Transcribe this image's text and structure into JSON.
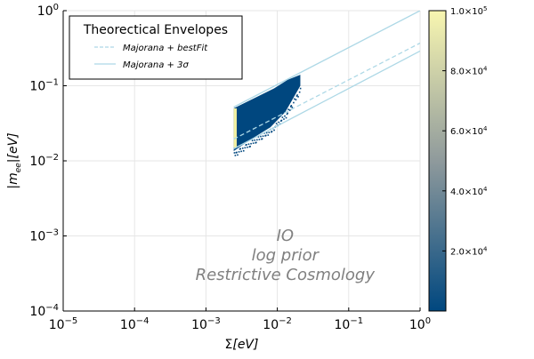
{
  "chart_data": {
    "type": "heatmap",
    "x_scale": "log10",
    "y_scale": "log10",
    "xlim": [
      1e-05,
      1
    ],
    "ylim": [
      0.0001,
      1
    ],
    "x_ticks": [
      {
        "value": 1e-05,
        "base": "10",
        "exp": "−5"
      },
      {
        "value": 0.0001,
        "base": "10",
        "exp": "−4"
      },
      {
        "value": 0.001,
        "base": "10",
        "exp": "−3"
      },
      {
        "value": 0.01,
        "base": "10",
        "exp": "−2"
      },
      {
        "value": 0.1,
        "base": "10",
        "exp": "−1"
      },
      {
        "value": 1,
        "base": "10",
        "exp": "0"
      }
    ],
    "y_ticks": [
      {
        "value": 0.0001,
        "base": "10",
        "exp": "−4"
      },
      {
        "value": 0.001,
        "base": "10",
        "exp": "−3"
      },
      {
        "value": 0.01,
        "base": "10",
        "exp": "−2"
      },
      {
        "value": 0.1,
        "base": "10",
        "exp": "−1"
      },
      {
        "value": 1,
        "base": "10",
        "exp": "0"
      }
    ],
    "xlabel": {
      "sym": "Σ",
      "unit": "[eV]"
    },
    "ylabel": {
      "sym": "|m",
      "sub": "ee",
      "unit": "|[eV]"
    },
    "legend": {
      "title": "Theorectical Envelopes",
      "placement": "top-left",
      "entries": [
        {
          "name": "Majorana + bestFit",
          "style": "dashed"
        },
        {
          "name": "Majorana + 3σ",
          "style": "solid"
        }
      ]
    },
    "envelope_color": "#add8e6",
    "series": [
      {
        "name": "Majorana + bestFit",
        "style": "dashed",
        "x": [
          0.00245,
          1.0
        ],
        "y": [
          0.0195,
          0.37
        ]
      },
      {
        "name": "Majorana + 3σ",
        "style": "solid",
        "label": "upper",
        "x": [
          0.00245,
          1.0
        ],
        "y": [
          0.052,
          1.0
        ]
      },
      {
        "name": "Majorana + 3σ",
        "style": "solid",
        "label": "lower",
        "x": [
          0.00245,
          1.0
        ],
        "y": [
          0.0145,
          0.29
        ]
      }
    ],
    "heatmap_region": {
      "x_min": 0.00245,
      "x_max": 0.021,
      "lower_y": [
        [
          0.00245,
          0.0135
        ],
        [
          0.0045,
          0.02
        ],
        [
          0.008,
          0.028
        ],
        [
          0.013,
          0.045
        ],
        [
          0.021,
          0.1
        ]
      ],
      "upper_y": [
        [
          0.00245,
          0.05
        ],
        [
          0.005,
          0.07
        ],
        [
          0.009,
          0.092
        ],
        [
          0.014,
          0.12
        ],
        [
          0.021,
          0.14
        ]
      ],
      "edge_x_max": 0.0027,
      "edge_y": [
        0.015,
        0.05
      ]
    },
    "colorbar": {
      "min": 0,
      "max": 100000,
      "colors": [
        "#00477f",
        "#8f9a9c",
        "#f8f6b0"
      ],
      "ticks": [
        {
          "value": 20000,
          "mant": "2.0×10",
          "exp": "4"
        },
        {
          "value": 40000,
          "mant": "4.0×10",
          "exp": "4"
        },
        {
          "value": 60000,
          "mant": "6.0×10",
          "exp": "4"
        },
        {
          "value": 80000,
          "mant": "8.0×10",
          "exp": "4"
        },
        {
          "value": 100000,
          "mant": "1.0×10",
          "exp": "5"
        }
      ]
    },
    "annotations": [
      "IO",
      "log prior",
      "Restrictive Cosmology"
    ],
    "annotation_anchor": {
      "x": 0.014,
      "y": 0.00055
    },
    "colors": {
      "grid": "#e6e6e6",
      "axis": "#000000",
      "annotation": "#808080",
      "heatmap": "#00477f",
      "heatmap_edge": "#f0efa0"
    }
  }
}
